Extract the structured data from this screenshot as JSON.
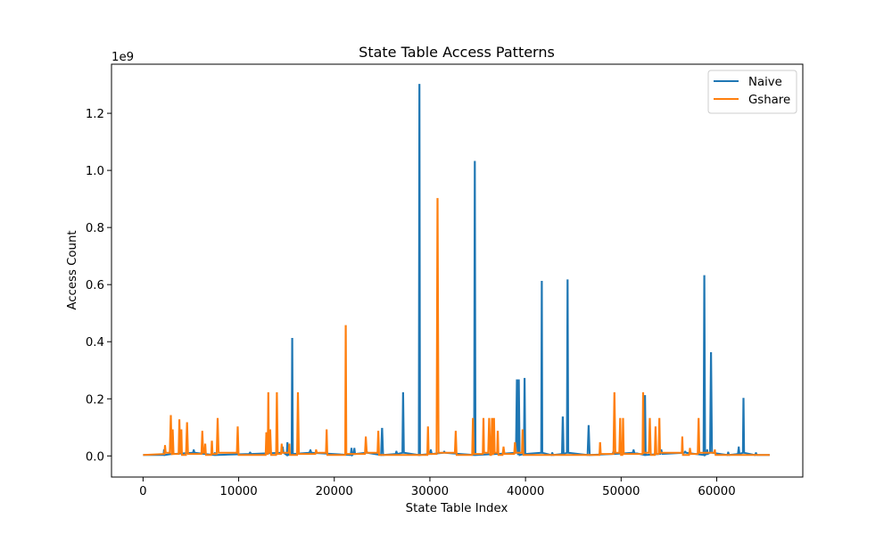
{
  "chart_data": {
    "type": "line",
    "title": "State Table Access Patterns",
    "xlabel": "State Table Index",
    "ylabel": "Access Count",
    "y_scale_label": "1e9",
    "xlim": [
      -3300,
      69000
    ],
    "ylim": [
      -0.074,
      1.372
    ],
    "x_ticks": [
      0,
      10000,
      20000,
      30000,
      40000,
      50000,
      60000
    ],
    "x_tick_labels": [
      "0",
      "10000",
      "20000",
      "30000",
      "40000",
      "50000",
      "60000"
    ],
    "y_ticks": [
      0.0,
      0.2,
      0.4,
      0.6,
      0.8,
      1.0,
      1.2
    ],
    "y_tick_labels": [
      "0.0",
      "0.2",
      "0.4",
      "0.6",
      "0.8",
      "1.0",
      "1.2"
    ],
    "legend_position": "top-right",
    "baseline": 0.003,
    "x_max": 65535,
    "series": [
      {
        "name": "Naive",
        "color": "#1f77b4",
        "spikes": [
          [
            2200,
            0.02
          ],
          [
            3100,
            0.015
          ],
          [
            5300,
            0.02
          ],
          [
            7500,
            0.01
          ],
          [
            11200,
            0.012
          ],
          [
            14600,
            0.03
          ],
          [
            15100,
            0.045
          ],
          [
            15600,
            0.41
          ],
          [
            17500,
            0.02
          ],
          [
            21800,
            0.025
          ],
          [
            22100,
            0.025
          ],
          [
            23400,
            0.015
          ],
          [
            25000,
            0.095
          ],
          [
            26500,
            0.015
          ],
          [
            27200,
            0.22
          ],
          [
            28900,
            1.3
          ],
          [
            30100,
            0.02
          ],
          [
            31500,
            0.015
          ],
          [
            34700,
            1.03
          ],
          [
            37100,
            0.015
          ],
          [
            39100,
            0.265
          ],
          [
            39300,
            0.265
          ],
          [
            39900,
            0.27
          ],
          [
            41700,
            0.61
          ],
          [
            42800,
            0.01
          ],
          [
            43900,
            0.135
          ],
          [
            44400,
            0.615
          ],
          [
            46600,
            0.105
          ],
          [
            49200,
            0.015
          ],
          [
            51300,
            0.02
          ],
          [
            52500,
            0.21
          ],
          [
            54200,
            0.02
          ],
          [
            56700,
            0.015
          ],
          [
            58700,
            0.63
          ],
          [
            59000,
            0.02
          ],
          [
            59400,
            0.36
          ],
          [
            61200,
            0.012
          ],
          [
            62300,
            0.03
          ],
          [
            62800,
            0.2
          ],
          [
            64100,
            0.01
          ]
        ]
      },
      {
        "name": "Gshare",
        "color": "#ff7f0e",
        "spikes": [
          [
            2300,
            0.035
          ],
          [
            2900,
            0.14
          ],
          [
            3100,
            0.09
          ],
          [
            3800,
            0.125
          ],
          [
            4000,
            0.09
          ],
          [
            4600,
            0.115
          ],
          [
            6200,
            0.085
          ],
          [
            6500,
            0.04
          ],
          [
            7200,
            0.05
          ],
          [
            7800,
            0.13
          ],
          [
            9900,
            0.1
          ],
          [
            12900,
            0.08
          ],
          [
            13100,
            0.22
          ],
          [
            13300,
            0.09
          ],
          [
            14000,
            0.22
          ],
          [
            14500,
            0.04
          ],
          [
            15300,
            0.04
          ],
          [
            16200,
            0.22
          ],
          [
            18100,
            0.02
          ],
          [
            19200,
            0.09
          ],
          [
            21200,
            0.455
          ],
          [
            23300,
            0.065
          ],
          [
            24600,
            0.085
          ],
          [
            29800,
            0.1
          ],
          [
            30800,
            0.9
          ],
          [
            32700,
            0.085
          ],
          [
            34500,
            0.13
          ],
          [
            35600,
            0.13
          ],
          [
            36200,
            0.13
          ],
          [
            36500,
            0.13
          ],
          [
            36700,
            0.13
          ],
          [
            37100,
            0.085
          ],
          [
            37700,
            0.03
          ],
          [
            38900,
            0.045
          ],
          [
            39700,
            0.09
          ],
          [
            47800,
            0.045
          ],
          [
            49300,
            0.22
          ],
          [
            49900,
            0.13
          ],
          [
            50200,
            0.13
          ],
          [
            52300,
            0.22
          ],
          [
            53000,
            0.13
          ],
          [
            53600,
            0.1
          ],
          [
            54000,
            0.13
          ],
          [
            56400,
            0.065
          ],
          [
            57200,
            0.025
          ],
          [
            58100,
            0.13
          ],
          [
            59800,
            0.02
          ]
        ]
      }
    ]
  }
}
